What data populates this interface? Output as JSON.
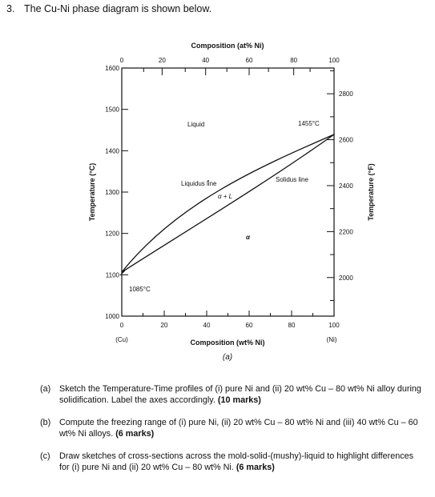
{
  "question": {
    "number": "3.",
    "intro": "The Cu-Ni phase diagram is shown below."
  },
  "diagram": {
    "top_axis_title": "Composition (at% Ni)",
    "top_ticks": [
      "0",
      "20",
      "40",
      "60",
      "80",
      "100"
    ],
    "bottom_axis_title": "Composition (wt% Ni)",
    "bottom_ticks": [
      "0",
      "20",
      "40",
      "60",
      "80",
      "100"
    ],
    "left_axis_title": "Temperature (°C)",
    "left_ticks": [
      "1600",
      "1500",
      "1400",
      "1300",
      "1200",
      "1100",
      "1000"
    ],
    "right_axis_title": "Temperature (°F)",
    "right_ticks": [
      "2800",
      "2600",
      "2400",
      "2200",
      "2000"
    ],
    "left_end_label": "(Cu)",
    "right_end_label": "(Ni)",
    "figure_label": "(a)",
    "region_liquid": "Liquid",
    "region_two_phase": "α + L",
    "region_alpha": "α",
    "liquidus_label": "Liquidus line",
    "solidus_label": "Solidus line",
    "cu_melting_point": "1085°C",
    "ni_melting_point": "1455°C"
  },
  "parts": [
    {
      "label": "(a)",
      "text": "Sketch the Temperature-Time profiles of (i) pure Ni and (ii) 20 wt% Cu – 80 wt% Ni alloy during solidification. Label the axes accordingly.",
      "marks": "(10 marks)"
    },
    {
      "label": "(b)",
      "text": "Compute the freezing range of (i) pure Ni, (ii) 20 wt% Cu – 80 wt% Ni and (iii) 40 wt% Cu – 60 wt% Ni alloys.",
      "marks": "(6 marks)"
    },
    {
      "label": "(c)",
      "text": "Draw sketches of cross-sections across the mold-solid-(mushy)-liquid to highlight differences for (i) pure Ni and (ii) 20 wt% Cu – 80 wt% Ni.",
      "marks": "(6 marks)"
    }
  ]
}
